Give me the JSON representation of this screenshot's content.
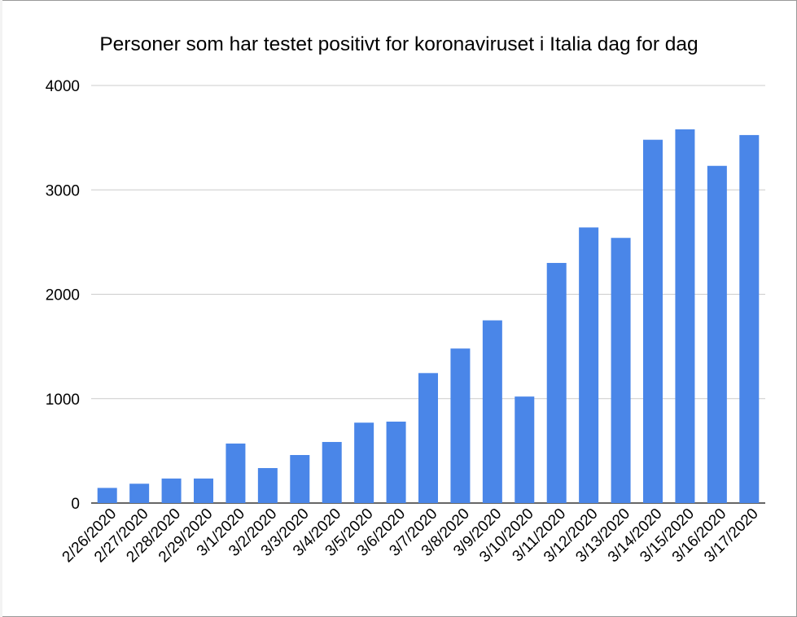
{
  "chart_data": {
    "type": "bar",
    "title": "Personer som har testet positivt for koronaviruset i Italia dag for dag",
    "xlabel": "",
    "ylabel": "",
    "ylim": [
      0,
      4000
    ],
    "yticks": [
      0,
      1000,
      2000,
      3000,
      4000
    ],
    "grid": true,
    "legend": "none",
    "color": "#4a86e8",
    "categories": [
      "2/26/2020",
      "2/27/2020",
      "2/28/2020",
      "2/29/2020",
      "3/1/2020",
      "3/2/2020",
      "3/3/2020",
      "3/4/2020",
      "3/5/2020",
      "3/6/2020",
      "3/7/2020",
      "3/8/2020",
      "3/9/2020",
      "3/10/2020",
      "3/11/2020",
      "3/12/2020",
      "3/13/2020",
      "3/14/2020",
      "3/15/2020",
      "3/16/2020",
      "3/17/2020"
    ],
    "values": [
      145,
      185,
      235,
      235,
      570,
      335,
      460,
      585,
      770,
      780,
      1245,
      1480,
      1750,
      1020,
      2300,
      2640,
      2540,
      3480,
      3580,
      3230,
      3525
    ]
  }
}
